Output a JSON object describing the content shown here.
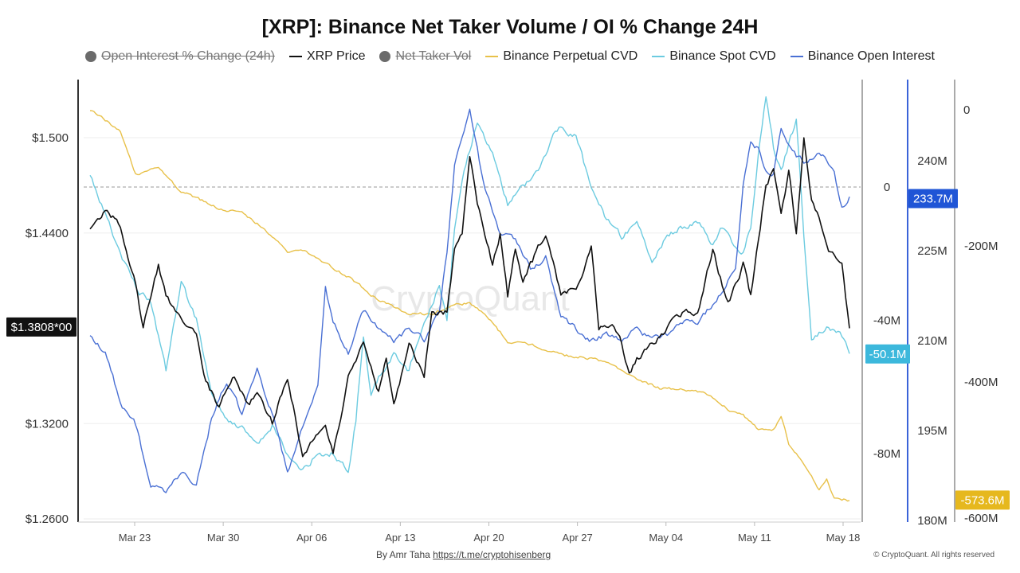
{
  "title": "[XRP]: Binance Net Taker Volume / OI % Change 24H",
  "legend": [
    {
      "label": "Open Interest % Change (24h)",
      "marker": "dot",
      "disabled": true,
      "color": "#6b6b6b"
    },
    {
      "label": "XRP Price",
      "marker": "line",
      "disabled": false,
      "color": "#111111"
    },
    {
      "label": "Net Taker Vol",
      "marker": "dot",
      "disabled": true,
      "color": "#6b6b6b"
    },
    {
      "label": "Binance Perpetual CVD",
      "marker": "line",
      "disabled": false,
      "color": "#e8c14a"
    },
    {
      "label": "Binance Spot CVD",
      "marker": "line",
      "disabled": false,
      "color": "#6ccbe0"
    },
    {
      "label": "Binance Open Interest",
      "marker": "line",
      "disabled": false,
      "color": "#4a70d4"
    }
  ],
  "watermark": "CryptoQuant",
  "credit": {
    "prefix": "By Amr Taha",
    "link": "https://t.me/cryptohisenberg"
  },
  "copyright": "© CryptoQuant. All rights reserved",
  "chart_data": {
    "type": "line",
    "x_labels": [
      "Mar 23",
      "Mar 30",
      "Apr 06",
      "Apr 13",
      "Apr 20",
      "Apr 27",
      "May 04",
      "May 11",
      "May 18"
    ],
    "x_range": [
      "Mar 18",
      "May 18"
    ],
    "axes": {
      "price": {
        "ticks": [
          "$1.500",
          "$1.4400",
          "$1.3200",
          "$1.2600"
        ],
        "tick_values": [
          1.5,
          1.44,
          1.32,
          1.26
        ],
        "range": [
          1.26,
          1.5
        ],
        "current_label": "$1.3808*00",
        "current": 1.3808,
        "color": "#111111"
      },
      "spot_cvd": {
        "ticks": [
          "0",
          "-40M",
          "-80M"
        ],
        "tick_values": [
          0,
          -40,
          -80
        ],
        "unit": "M",
        "current_label": "-50.1M",
        "current": -50.1,
        "color": "#3cb8dc"
      },
      "open_interest": {
        "ticks": [
          "240M",
          "225M",
          "210M",
          "195M",
          "180M"
        ],
        "tick_values": [
          240,
          225,
          210,
          195,
          180
        ],
        "unit": "M",
        "current_label": "233.7M",
        "current": 233.7,
        "color": "#1f55d6"
      },
      "perp_cvd": {
        "ticks": [
          "0",
          "-200M",
          "-400M",
          "-600M"
        ],
        "tick_values": [
          0,
          -200,
          -400,
          -600
        ],
        "unit": "M",
        "current_label": "-573.6M",
        "current": -573.6,
        "color": "#e6b81e"
      }
    },
    "reference_line": {
      "axis": "spot_cvd",
      "value": 0
    },
    "series": [
      {
        "name": "XRP Price",
        "axis": "price",
        "color": "#111111",
        "keyframes": [
          [
            0,
            1.443
          ],
          [
            2,
            1.455
          ],
          [
            4,
            1.445
          ],
          [
            6,
            1.408
          ],
          [
            7,
            1.38
          ],
          [
            9,
            1.42
          ],
          [
            10,
            1.4
          ],
          [
            12,
            1.385
          ],
          [
            14,
            1.378
          ],
          [
            15,
            1.35
          ],
          [
            17,
            1.33
          ],
          [
            19,
            1.35
          ],
          [
            21,
            1.33
          ],
          [
            22,
            1.34
          ],
          [
            24,
            1.32
          ],
          [
            26,
            1.35
          ],
          [
            28,
            1.3
          ],
          [
            30,
            1.312
          ],
          [
            31,
            1.32
          ],
          [
            32,
            1.3
          ],
          [
            34,
            1.35
          ],
          [
            36,
            1.37
          ],
          [
            38,
            1.34
          ],
          [
            39,
            1.36
          ],
          [
            40,
            1.33
          ],
          [
            42,
            1.37
          ],
          [
            44,
            1.35
          ],
          [
            45,
            1.39
          ],
          [
            47,
            1.39
          ],
          [
            48,
            1.43
          ],
          [
            49,
            1.44
          ],
          [
            50,
            1.49
          ],
          [
            51,
            1.46
          ],
          [
            53,
            1.42
          ],
          [
            54,
            1.44
          ],
          [
            55,
            1.4
          ],
          [
            56,
            1.43
          ],
          [
            57,
            1.41
          ],
          [
            58,
            1.42
          ],
          [
            60,
            1.44
          ],
          [
            62,
            1.4
          ],
          [
            64,
            1.405
          ],
          [
            66,
            1.43
          ],
          [
            67,
            1.38
          ],
          [
            69,
            1.38
          ],
          [
            70,
            1.37
          ],
          [
            71,
            1.35
          ],
          [
            72,
            1.36
          ],
          [
            74,
            1.37
          ],
          [
            76,
            1.38
          ],
          [
            78,
            1.39
          ],
          [
            80,
            1.39
          ],
          [
            82,
            1.43
          ],
          [
            84,
            1.395
          ],
          [
            86,
            1.42
          ],
          [
            87,
            1.4
          ],
          [
            89,
            1.47
          ],
          [
            90,
            1.48
          ],
          [
            91,
            1.45
          ],
          [
            92,
            1.48
          ],
          [
            93,
            1.44
          ],
          [
            94,
            1.5
          ],
          [
            95,
            1.46
          ],
          [
            96,
            1.45
          ],
          [
            97,
            1.43
          ],
          [
            99,
            1.42
          ],
          [
            100,
            1.38
          ]
        ]
      },
      {
        "name": "Binance Perpetual CVD",
        "axis": "perp_cvd",
        "color": "#e8c14a",
        "keyframes": [
          [
            0,
            0
          ],
          [
            4,
            -30
          ],
          [
            6,
            -95
          ],
          [
            9,
            -85
          ],
          [
            12,
            -120
          ],
          [
            14,
            -130
          ],
          [
            17,
            -145
          ],
          [
            20,
            -150
          ],
          [
            23,
            -175
          ],
          [
            26,
            -210
          ],
          [
            28,
            -205
          ],
          [
            31,
            -225
          ],
          [
            34,
            -245
          ],
          [
            38,
            -280
          ],
          [
            42,
            -300
          ],
          [
            45,
            -300
          ],
          [
            48,
            -285
          ],
          [
            50,
            -285
          ],
          [
            52,
            -300
          ],
          [
            55,
            -340
          ],
          [
            58,
            -345
          ],
          [
            62,
            -360
          ],
          [
            66,
            -365
          ],
          [
            69,
            -375
          ],
          [
            72,
            -395
          ],
          [
            75,
            -410
          ],
          [
            78,
            -410
          ],
          [
            81,
            -415
          ],
          [
            84,
            -440
          ],
          [
            86,
            -450
          ],
          [
            88,
            -470
          ],
          [
            90,
            -470
          ],
          [
            91,
            -450
          ],
          [
            92,
            -490
          ],
          [
            94,
            -520
          ],
          [
            96,
            -560
          ],
          [
            97,
            -545
          ],
          [
            98,
            -570
          ],
          [
            100,
            -574
          ]
        ]
      },
      {
        "name": "Binance Spot CVD",
        "axis": "spot_cvd",
        "color": "#6ccbe0",
        "keyframes": [
          [
            0,
            4
          ],
          [
            2,
            -8
          ],
          [
            4,
            -20
          ],
          [
            6,
            -30
          ],
          [
            8,
            -35
          ],
          [
            10,
            -55
          ],
          [
            12,
            -28
          ],
          [
            14,
            -40
          ],
          [
            16,
            -62
          ],
          [
            18,
            -70
          ],
          [
            20,
            -72
          ],
          [
            22,
            -78
          ],
          [
            24,
            -72
          ],
          [
            26,
            -80
          ],
          [
            28,
            -85
          ],
          [
            30,
            -80
          ],
          [
            32,
            -80
          ],
          [
            34,
            -85
          ],
          [
            35,
            -70
          ],
          [
            36,
            -45
          ],
          [
            37,
            -62
          ],
          [
            38,
            -57
          ],
          [
            40,
            -50
          ],
          [
            42,
            -55
          ],
          [
            44,
            -40
          ],
          [
            46,
            -30
          ],
          [
            47,
            -40
          ],
          [
            48,
            -12
          ],
          [
            49,
            2
          ],
          [
            51,
            20
          ],
          [
            53,
            10
          ],
          [
            55,
            -5
          ],
          [
            57,
            0
          ],
          [
            59,
            5
          ],
          [
            61,
            15
          ],
          [
            62,
            18
          ],
          [
            64,
            15
          ],
          [
            66,
            0
          ],
          [
            68,
            -10
          ],
          [
            70,
            -15
          ],
          [
            72,
            -10
          ],
          [
            74,
            -22
          ],
          [
            76,
            -15
          ],
          [
            78,
            -12
          ],
          [
            80,
            -10
          ],
          [
            82,
            -18
          ],
          [
            83,
            -12
          ],
          [
            84,
            -15
          ],
          [
            86,
            -20
          ],
          [
            87,
            -12
          ],
          [
            88,
            10
          ],
          [
            89,
            28
          ],
          [
            90,
            12
          ],
          [
            91,
            5
          ],
          [
            93,
            20
          ],
          [
            94,
            -15
          ],
          [
            95,
            -45
          ],
          [
            97,
            -42
          ],
          [
            99,
            -45
          ],
          [
            100,
            -50
          ]
        ]
      },
      {
        "name": "Binance Open Interest",
        "axis": "open_interest",
        "color": "#4a70d4",
        "keyframes": [
          [
            0,
            211
          ],
          [
            2,
            208
          ],
          [
            3,
            204
          ],
          [
            4,
            199
          ],
          [
            6,
            196
          ],
          [
            8,
            186
          ],
          [
            10,
            185
          ],
          [
            12,
            188
          ],
          [
            14,
            186
          ],
          [
            16,
            197
          ],
          [
            18,
            203
          ],
          [
            20,
            198
          ],
          [
            22,
            205
          ],
          [
            24,
            198
          ],
          [
            26,
            188
          ],
          [
            28,
            196
          ],
          [
            30,
            203
          ],
          [
            31,
            219
          ],
          [
            32,
            213
          ],
          [
            34,
            208
          ],
          [
            36,
            215
          ],
          [
            38,
            212
          ],
          [
            40,
            210
          ],
          [
            42,
            212
          ],
          [
            44,
            210
          ],
          [
            46,
            215
          ],
          [
            47,
            225
          ],
          [
            48,
            239
          ],
          [
            50,
            249
          ],
          [
            52,
            235
          ],
          [
            54,
            228
          ],
          [
            56,
            227
          ],
          [
            58,
            222
          ],
          [
            60,
            224
          ],
          [
            62,
            214
          ],
          [
            64,
            212
          ],
          [
            66,
            210
          ],
          [
            68,
            211
          ],
          [
            70,
            210
          ],
          [
            72,
            212
          ],
          [
            74,
            210
          ],
          [
            76,
            211
          ],
          [
            78,
            213
          ],
          [
            80,
            213
          ],
          [
            82,
            216
          ],
          [
            84,
            220
          ],
          [
            85,
            222
          ],
          [
            86,
            236
          ],
          [
            87,
            243
          ],
          [
            88,
            242
          ],
          [
            89,
            238
          ],
          [
            90,
            238
          ],
          [
            91,
            245
          ],
          [
            93,
            241
          ],
          [
            94,
            240
          ],
          [
            95,
            240
          ],
          [
            96,
            241
          ],
          [
            97,
            240
          ],
          [
            98,
            238
          ],
          [
            99,
            232
          ],
          [
            100,
            234
          ]
        ]
      }
    ]
  }
}
